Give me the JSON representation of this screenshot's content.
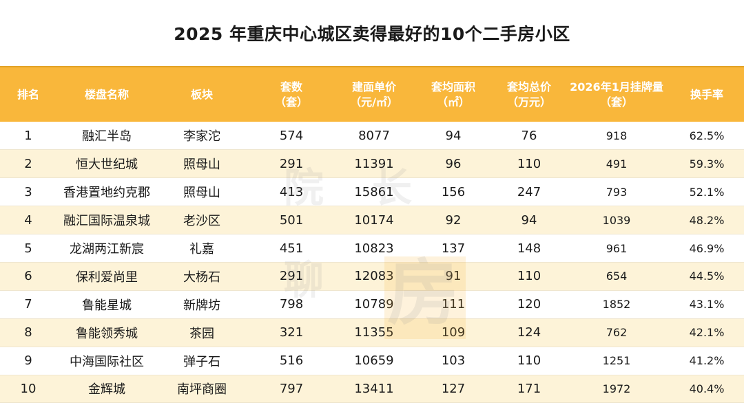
{
  "title": "2025 年重庆中心城区卖得最好的10个二手房小区",
  "header": {
    "rank": "排名",
    "name": "楼盘名称",
    "district": "板块",
    "count_1": "套数",
    "count_2": "（套）",
    "price_1": "建面单价",
    "price_2": "（元/㎡）",
    "area_1": "套均面积",
    "area_2": "（㎡）",
    "total_1": "套均总价",
    "total_2": "（万元）",
    "listing_1": "2026年1月挂牌量",
    "listing_2": "（套）",
    "turnover": "换手率"
  },
  "watermark": {
    "char1": "院",
    "char2": "长",
    "char3": "聊",
    "char4": "房"
  },
  "chart_data": {
    "type": "table",
    "title": "2025 年重庆中心城区卖得最好的10个二手房小区",
    "columns": [
      "排名",
      "楼盘名称",
      "板块",
      "套数（套）",
      "建面单价（元/㎡）",
      "套均面积（㎡）",
      "套均总价（万元）",
      "2026年1月挂牌量（套）",
      "换手率"
    ],
    "rows": [
      [
        "1",
        "融汇半岛",
        "李家沱",
        "574",
        "8077",
        "94",
        "76",
        "918",
        "62.5%"
      ],
      [
        "2",
        "恒大世纪城",
        "照母山",
        "291",
        "11391",
        "96",
        "110",
        "491",
        "59.3%"
      ],
      [
        "3",
        "香港置地约克郡",
        "照母山",
        "413",
        "15861",
        "156",
        "247",
        "793",
        "52.1%"
      ],
      [
        "4",
        "融汇国际温泉城",
        "老沙区",
        "501",
        "10174",
        "92",
        "94",
        "1039",
        "48.2%"
      ],
      [
        "5",
        "龙湖两江新宸",
        "礼嘉",
        "451",
        "10823",
        "137",
        "148",
        "961",
        "46.9%"
      ],
      [
        "6",
        "保利爱尚里",
        "大杨石",
        "291",
        "12083",
        "91",
        "110",
        "654",
        "44.5%"
      ],
      [
        "7",
        "鲁能星城",
        "新牌坊",
        "798",
        "10789",
        "111",
        "120",
        "1852",
        "43.1%"
      ],
      [
        "8",
        "鲁能领秀城",
        "茶园",
        "321",
        "11355",
        "109",
        "124",
        "762",
        "42.1%"
      ],
      [
        "9",
        "中海国际社区",
        "弹子石",
        "516",
        "10659",
        "103",
        "110",
        "1251",
        "41.2%"
      ],
      [
        "10",
        "金辉城",
        "南坪商圈",
        "797",
        "13411",
        "127",
        "171",
        "1972",
        "40.4%"
      ]
    ]
  }
}
